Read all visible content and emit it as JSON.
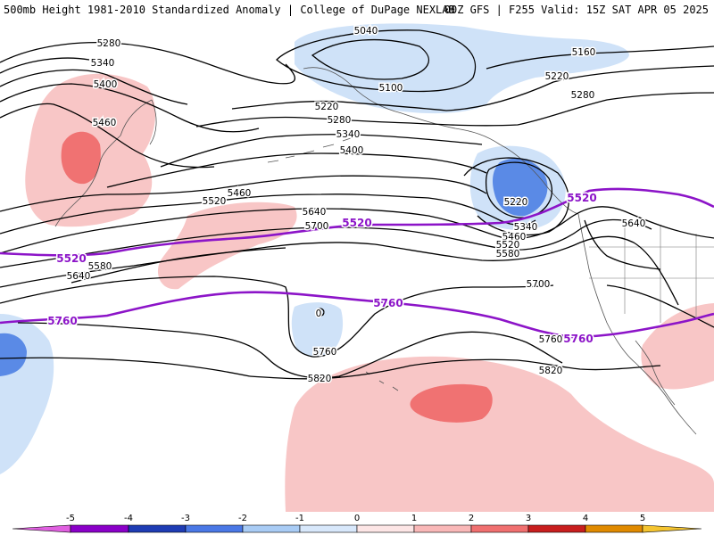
{
  "header": {
    "left": "500mb Height 1981-2010 Standardized Anomaly | College of DuPage NEXLAB",
    "right": "00Z GFS | F255 Valid: 15Z SAT APR 05 2025"
  },
  "contour_labels": {
    "black": [
      "5280",
      "5340",
      "5400",
      "5460",
      "5040",
      "5100",
      "5160",
      "5220",
      "5280",
      "5220",
      "5280",
      "5340",
      "5400",
      "5460",
      "5520",
      "5220",
      "5340",
      "5460",
      "5520",
      "5580",
      "5640",
      "5700",
      "5580",
      "5640",
      "5700",
      "5760",
      "5760",
      "5820",
      "5820",
      "5640"
    ],
    "purple": [
      "5520",
      "5520",
      "5520",
      "5760",
      "5760",
      "5760"
    ],
    "small_zero": "0"
  },
  "colorbar": {
    "ticks": [
      "-5",
      "-4",
      "-3",
      "-2",
      "-1",
      "0",
      "1",
      "2",
      "3",
      "4",
      "5"
    ],
    "colors": {
      "m5": "#e060e0",
      "m4": "#8a00c8",
      "m3": "#1e3cb4",
      "m2": "#4a78e6",
      "m1": "#a9ccf5",
      "m0": "#d8e8fb",
      "p0": "#fde6e6",
      "p1": "#f9b8b8",
      "p2": "#f07070",
      "p3": "#c81e1e",
      "p4": "#e08a00",
      "p5": "#f4c430"
    }
  },
  "colors": {
    "contour": "#000000",
    "purple_contour": "#8c14c8",
    "coast": "#555555",
    "pos_light": "#f8c6c6",
    "pos_mid": "#f07272",
    "neg_light": "#cfe2f8",
    "neg_mid": "#5a8ae6"
  }
}
